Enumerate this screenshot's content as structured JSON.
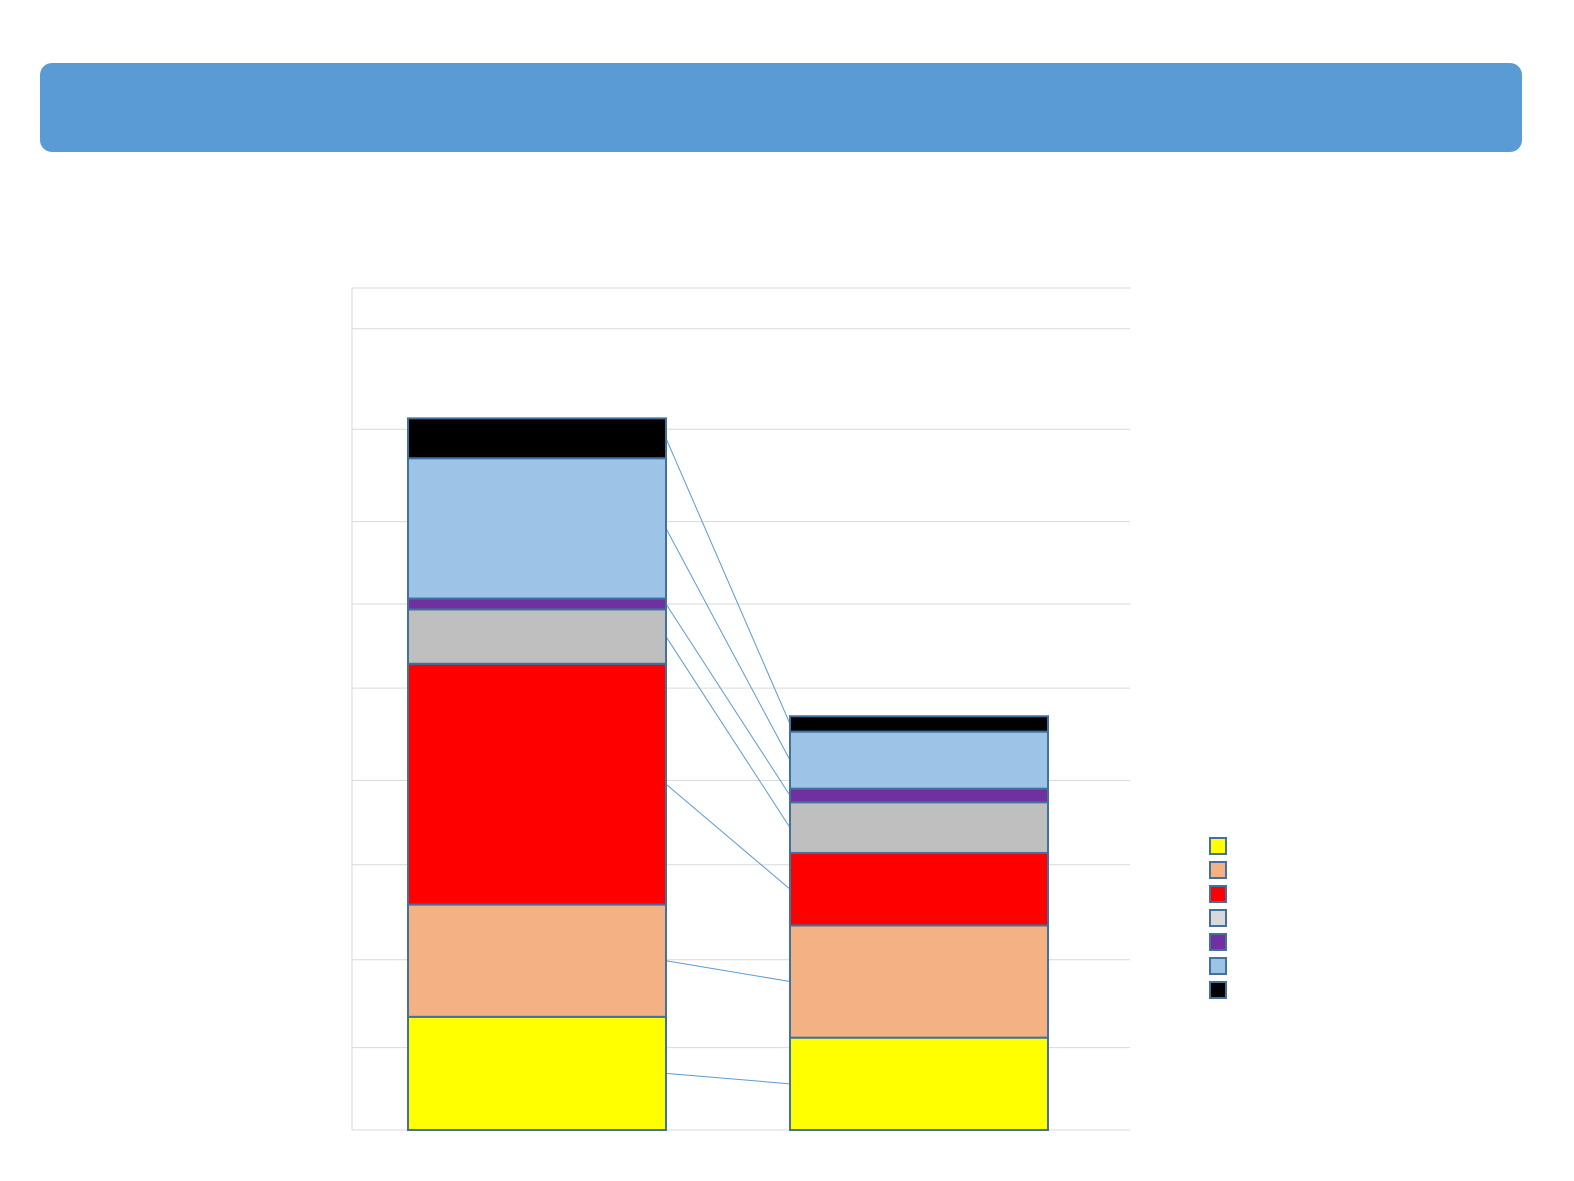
{
  "header": {
    "title": ""
  },
  "chart_data": {
    "type": "bar",
    "stacked": true,
    "categories": [
      "",
      ""
    ],
    "grid": true,
    "gridlines": [
      0.91,
      1.88,
      2.93,
      3.86,
      4.88,
      5.81,
      6.72,
      7.74,
      8.85
    ],
    "total_top": 9.3,
    "series": [
      {
        "values": [
          1.25,
          1.02
        ],
        "color": "#ffff00"
      },
      {
        "values": [
          1.24,
          1.24
        ],
        "color": "#f4b183"
      },
      {
        "values": [
          2.66,
          0.8
        ],
        "color": "#ff0000"
      },
      {
        "values": [
          0.6,
          0.56
        ],
        "color": "#bfbfbf"
      },
      {
        "values": [
          0.12,
          0.15
        ],
        "color": "#7030a0"
      },
      {
        "values": [
          1.55,
          0.63
        ],
        "color": "#9dc3e6"
      },
      {
        "values": [
          0.44,
          0.17
        ],
        "color": "#000000"
      }
    ],
    "legend_position": "right",
    "legend_colors": [
      "#ffff00",
      "#f4b183",
      "#ff0000",
      "#d9d9d9",
      "#7030a0",
      "#9dc3e6",
      "#000000"
    ],
    "connector_color": "#5b9bd5"
  }
}
